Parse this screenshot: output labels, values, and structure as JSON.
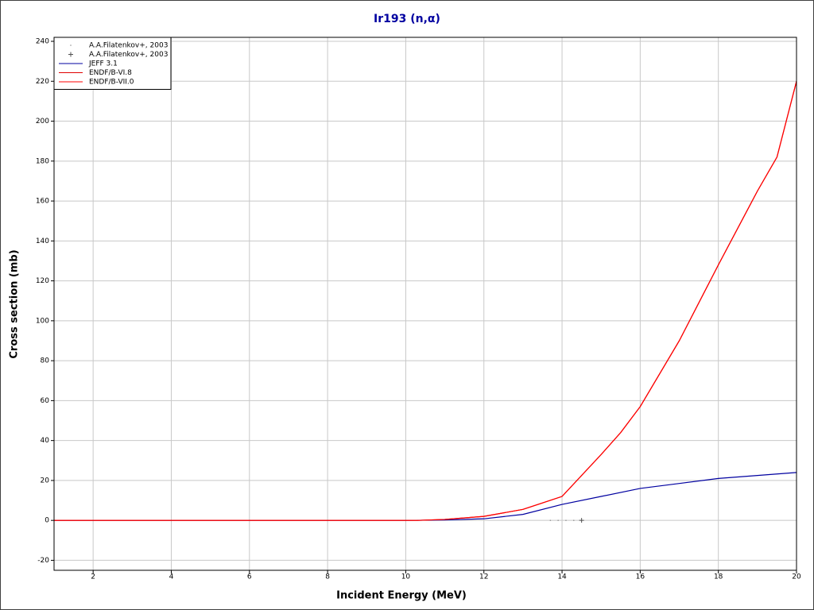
{
  "chart_data": {
    "type": "line",
    "title": "Ir193 (n,α)",
    "x_label": "Incident Energy (MeV)",
    "y_label": "Cross section (mb)",
    "xlim": [
      1,
      20
    ],
    "ylim": [
      -25,
      242
    ],
    "xticks": [
      2,
      4,
      6,
      8,
      10,
      12,
      14,
      16,
      18,
      20
    ],
    "yticks": [
      -20,
      0,
      20,
      40,
      60,
      80,
      100,
      120,
      140,
      160,
      180,
      200,
      220,
      240
    ],
    "grid": true,
    "legend": "upper left",
    "series": [
      {
        "name": "A.A.Filatenkov+, 2003",
        "style": "points",
        "marker": "dot",
        "color": "#909090",
        "x": [
          13.7,
          13.9,
          14.1,
          14.3
        ],
        "values": [
          0,
          0,
          0,
          0
        ]
      },
      {
        "name": "A.A.Filatenkov+, 2003",
        "style": "points",
        "marker": "plus",
        "color": "#505050",
        "x": [
          14.5
        ],
        "values": [
          0
        ]
      },
      {
        "name": "JEFF 3.1",
        "style": "line",
        "color": "#0000a0",
        "x": [
          1,
          10,
          11,
          12,
          13,
          14,
          15,
          16,
          17,
          18,
          19,
          20
        ],
        "values": [
          0,
          0,
          0.2,
          0.8,
          3,
          8,
          12,
          16,
          18.5,
          21,
          22.5,
          24
        ]
      },
      {
        "name": "ENDF/B-VI.8",
        "style": "line",
        "color": "#e00000",
        "x": [
          1,
          10.3,
          11,
          12,
          13,
          14,
          15,
          15.5,
          16,
          17,
          18,
          19,
          19.5,
          20
        ],
        "values": [
          0,
          0,
          0.5,
          2,
          5.5,
          12,
          33,
          44,
          57,
          90,
          128,
          165,
          182,
          220
        ]
      },
      {
        "name": "ENDF/B-VII.0",
        "style": "line",
        "color": "#ff0000",
        "x": [
          1,
          10.3,
          11,
          12,
          13,
          14,
          15,
          15.5,
          16,
          17,
          18,
          19,
          19.5,
          20
        ],
        "values": [
          0,
          0,
          0.5,
          2,
          5.5,
          12,
          33,
          44,
          57,
          90,
          128,
          165,
          182,
          220
        ]
      }
    ]
  }
}
